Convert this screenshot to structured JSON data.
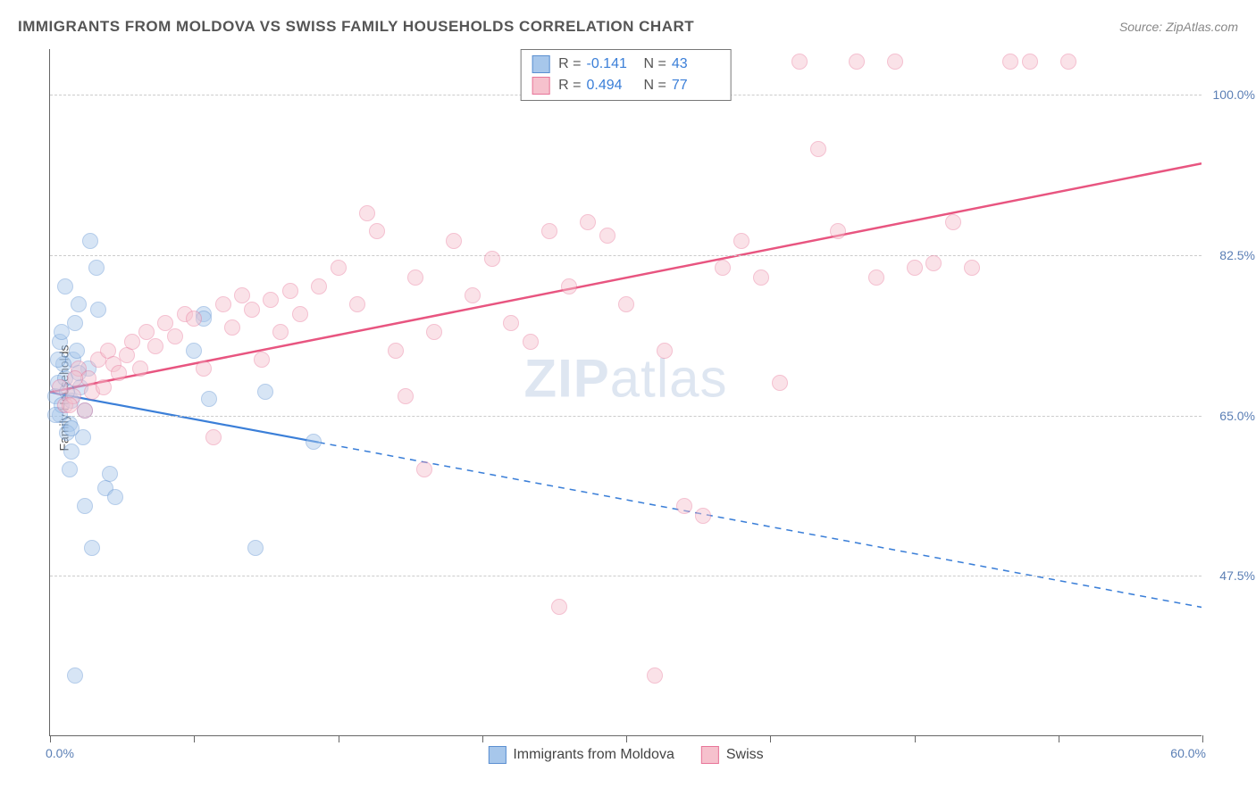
{
  "title": "IMMIGRANTS FROM MOLDOVA VS SWISS FAMILY HOUSEHOLDS CORRELATION CHART",
  "source": "Source: ZipAtlas.com",
  "ylabel": "Family Households",
  "watermark_zip": "ZIP",
  "watermark_atlas": "atlas",
  "chart": {
    "type": "scatter",
    "xlim": [
      0,
      60
    ],
    "ylim": [
      30,
      105
    ],
    "x_tick_positions": [
      0,
      7.5,
      15,
      22.5,
      30,
      37.5,
      45,
      52.5,
      60
    ],
    "x_tick_labels": {
      "left": "0.0%",
      "right": "60.0%"
    },
    "y_gridlines": [
      47.5,
      65.0,
      82.5,
      100.0
    ],
    "y_tick_labels": [
      "47.5%",
      "65.0%",
      "82.5%",
      "100.0%"
    ],
    "grid_color": "#cccccc",
    "axis_color": "#666666",
    "background": "#ffffff",
    "tick_label_color": "#5b7fb5",
    "marker_radius": 9,
    "marker_opacity": 0.45,
    "series": [
      {
        "name": "Immigrants from Moldova",
        "color_fill": "#a7c7eb",
        "color_stroke": "#5b8fd1",
        "R": "-0.141",
        "N": "43",
        "trend": {
          "x1": 0,
          "y1": 67.5,
          "x2": 60,
          "y2": 44.0,
          "solid_until_x": 14,
          "color": "#3b7fd8",
          "width": 2.2
        },
        "points": [
          [
            0.3,
            67
          ],
          [
            0.5,
            65
          ],
          [
            0.4,
            68.5
          ],
          [
            0.6,
            66
          ],
          [
            0.8,
            69
          ],
          [
            1.0,
            64
          ],
          [
            1.2,
            71
          ],
          [
            0.7,
            70.5
          ],
          [
            1.4,
            72
          ],
          [
            0.9,
            63
          ],
          [
            1.6,
            68
          ],
          [
            1.1,
            66.5
          ],
          [
            1.8,
            65.5
          ],
          [
            0.5,
            73
          ],
          [
            2.0,
            70
          ],
          [
            2.1,
            84
          ],
          [
            2.4,
            81
          ],
          [
            2.5,
            76.5
          ],
          [
            1.5,
            77
          ],
          [
            1.3,
            75
          ],
          [
            0.8,
            79
          ],
          [
            1.0,
            59
          ],
          [
            1.8,
            55
          ],
          [
            2.9,
            57
          ],
          [
            3.1,
            58.5
          ],
          [
            3.4,
            56
          ],
          [
            2.2,
            50.5
          ],
          [
            1.1,
            61
          ],
          [
            1.7,
            62.5
          ],
          [
            1.3,
            36.5
          ],
          [
            8.0,
            76
          ],
          [
            8.0,
            75.5
          ],
          [
            8.3,
            66.7
          ],
          [
            7.5,
            72
          ],
          [
            11.2,
            67.5
          ],
          [
            10.7,
            50.5
          ],
          [
            13.7,
            62
          ],
          [
            0.4,
            71
          ],
          [
            0.6,
            74
          ],
          [
            0.9,
            67.5
          ],
          [
            1.5,
            69.5
          ],
          [
            0.3,
            65
          ],
          [
            1.1,
            63.5
          ]
        ]
      },
      {
        "name": "Swiss",
        "color_fill": "#f6c1cd",
        "color_stroke": "#e87599",
        "R": "0.494",
        "N": "77",
        "trend": {
          "x1": 0,
          "y1": 67.5,
          "x2": 60,
          "y2": 92.5,
          "solid_until_x": 60,
          "color": "#e85580",
          "width": 2.5
        },
        "points": [
          [
            0.8,
            66
          ],
          [
            1.2,
            67
          ],
          [
            1.5,
            70
          ],
          [
            1.8,
            65.5
          ],
          [
            2.0,
            69
          ],
          [
            2.2,
            67.5
          ],
          [
            2.5,
            71
          ],
          [
            2.8,
            68
          ],
          [
            3.0,
            72
          ],
          [
            3.3,
            70.5
          ],
          [
            3.6,
            69.5
          ],
          [
            4.0,
            71.5
          ],
          [
            4.3,
            73
          ],
          [
            4.7,
            70
          ],
          [
            5.0,
            74
          ],
          [
            5.5,
            72.5
          ],
          [
            6.0,
            75
          ],
          [
            6.5,
            73.5
          ],
          [
            7.0,
            76
          ],
          [
            7.5,
            75.5
          ],
          [
            8.0,
            70
          ],
          [
            8.5,
            62.5
          ],
          [
            9.0,
            77
          ],
          [
            9.5,
            74.5
          ],
          [
            10.0,
            78
          ],
          [
            10.5,
            76.5
          ],
          [
            11.0,
            71
          ],
          [
            11.5,
            77.5
          ],
          [
            12.0,
            74
          ],
          [
            12.5,
            78.5
          ],
          [
            13.0,
            76
          ],
          [
            14.0,
            79
          ],
          [
            15.0,
            81
          ],
          [
            16.0,
            77
          ],
          [
            16.5,
            87
          ],
          [
            17.0,
            85
          ],
          [
            18.0,
            72
          ],
          [
            18.5,
            67
          ],
          [
            19.0,
            80
          ],
          [
            19.5,
            59
          ],
          [
            20.0,
            74
          ],
          [
            21.0,
            84
          ],
          [
            22.0,
            78
          ],
          [
            23.0,
            82
          ],
          [
            24.0,
            75
          ],
          [
            25.0,
            73
          ],
          [
            26.0,
            85
          ],
          [
            26.5,
            44
          ],
          [
            27.0,
            79
          ],
          [
            28.0,
            86
          ],
          [
            29.0,
            84.5
          ],
          [
            30.0,
            77
          ],
          [
            31.0,
            103.5
          ],
          [
            32.0,
            72
          ],
          [
            33.0,
            55
          ],
          [
            34.0,
            54
          ],
          [
            35.0,
            81
          ],
          [
            36.0,
            84
          ],
          [
            37.0,
            80
          ],
          [
            38.0,
            68.5
          ],
          [
            39.0,
            103.5
          ],
          [
            40.0,
            94
          ],
          [
            41.0,
            85
          ],
          [
            42.0,
            103.5
          ],
          [
            43.0,
            80
          ],
          [
            44.0,
            103.5
          ],
          [
            45.0,
            81
          ],
          [
            31.5,
            36.5
          ],
          [
            46.0,
            81.5
          ],
          [
            47.0,
            86
          ],
          [
            48.0,
            81
          ],
          [
            50.0,
            103.5
          ],
          [
            51.0,
            103.5
          ],
          [
            53.0,
            103.5
          ],
          [
            0.5,
            68
          ],
          [
            1.0,
            66
          ],
          [
            1.3,
            69
          ]
        ]
      }
    ]
  },
  "legend_top": {
    "R_label": "R =",
    "N_label": "N ="
  },
  "legend_bottom_labels": [
    "Immigrants from Moldova",
    "Swiss"
  ]
}
